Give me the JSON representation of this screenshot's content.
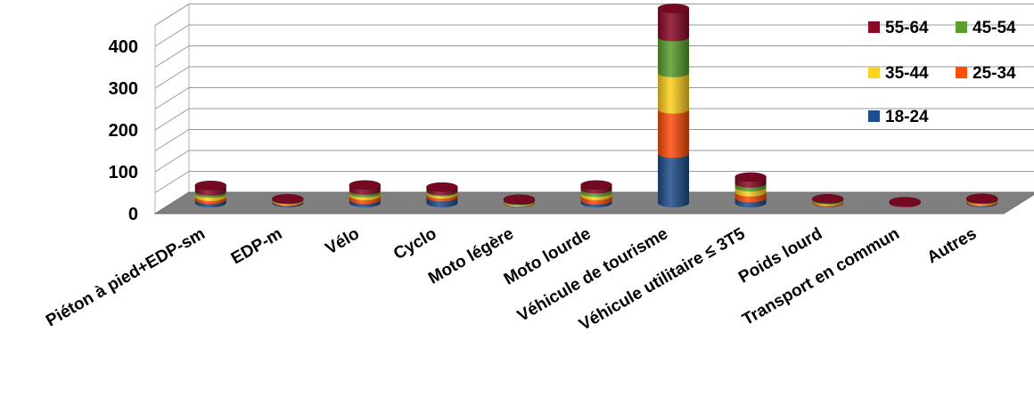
{
  "chart_data": {
    "type": "bar",
    "stacked": true,
    "three_d": true,
    "categories": [
      "Piéton à pied+EDP-sm",
      "EDP-m",
      "Vélo",
      "Cyclo",
      "Moto légère",
      "Moto lourde",
      "Véhicule de tourisme",
      "Véhicule utilitaire ≤ 3T5",
      "Poids lourd",
      "Transport en commun",
      "Autres"
    ],
    "series": [
      {
        "name": "18-24",
        "color": "#1f4e8c",
        "values": [
          8,
          3,
          8,
          14,
          1,
          7,
          118,
          12,
          1,
          0,
          2
        ]
      },
      {
        "name": "25-34",
        "color": "#ff4d0a",
        "values": [
          7,
          2,
          9,
          7,
          1,
          10,
          106,
          14,
          3,
          0,
          3
        ]
      },
      {
        "name": "35-44",
        "color": "#ffd21f",
        "values": [
          8,
          2,
          7,
          5,
          2,
          8,
          87,
          12,
          2,
          0,
          2
        ]
      },
      {
        "name": "45-54",
        "color": "#5aa02c",
        "values": [
          5,
          1,
          6,
          3,
          2,
          8,
          86,
          9,
          3,
          0,
          1
        ]
      },
      {
        "name": "55-64",
        "color": "#8b0a28",
        "values": [
          14,
          2,
          13,
          9,
          3,
          10,
          68,
          15,
          1,
          3,
          3
        ]
      }
    ],
    "y_ticks": [
      "0",
      "100",
      "200",
      "300",
      "400"
    ],
    "ylim": [
      0,
      450
    ],
    "grid": true,
    "legend_position": "top-right",
    "title": "",
    "xlabel": "",
    "ylabel": ""
  }
}
